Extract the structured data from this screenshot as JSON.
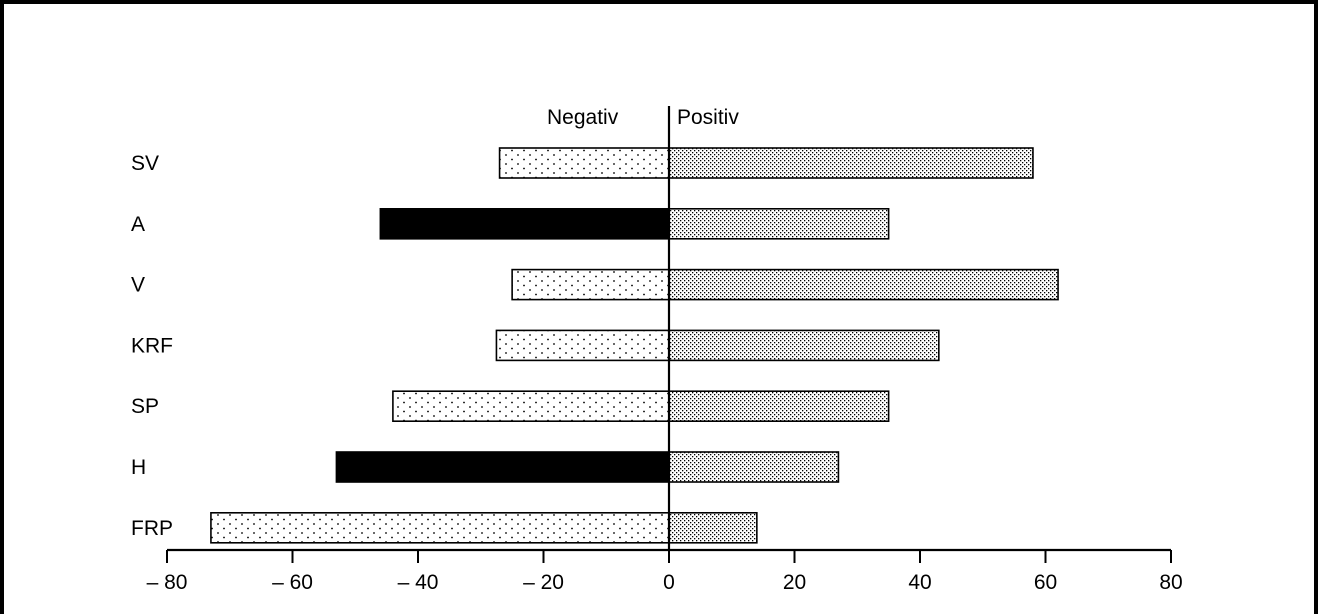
{
  "chart_data": {
    "type": "bar",
    "orientation": "horizontal-diverging",
    "title": "",
    "xlabel": "",
    "ylabel": "",
    "header_left": "Negativ",
    "header_right": "Positiv",
    "categories": [
      "SV",
      "A",
      "V",
      "KRF",
      "SP",
      "H",
      "FRP"
    ],
    "negative": [
      -27,
      -46,
      -25,
      -27.5,
      -44,
      -53,
      -73
    ],
    "negative_style": [
      "dotted",
      "solid",
      "dotted",
      "dotted",
      "dotted",
      "solid",
      "dotted"
    ],
    "positive": [
      58,
      35,
      62,
      43,
      35,
      27,
      14
    ],
    "xlim": [
      -80,
      80
    ],
    "xticks": [
      -80,
      -60,
      -40,
      -20,
      0,
      20,
      40,
      60,
      80
    ],
    "xtick_labels": [
      "– 80",
      "– 60",
      "– 40",
      "– 20",
      "0",
      "20",
      "40",
      "60",
      "80"
    ],
    "grid": false,
    "colors": {
      "bar_outline": "#000000",
      "solid_fill": "#000000",
      "background": "#ffffff"
    }
  }
}
